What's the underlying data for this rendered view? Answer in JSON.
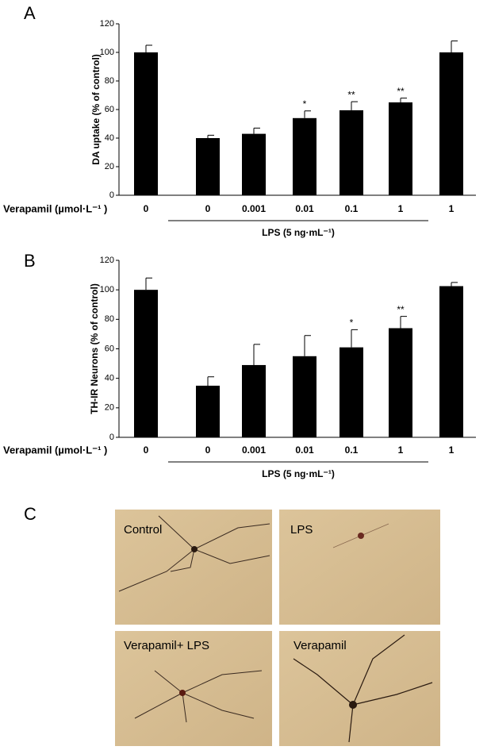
{
  "chart_data": [
    {
      "type": "bar",
      "panel_label": "A",
      "y_label": "DA uptake (% of control)",
      "x_label": "Verapamil (µmol·L⁻¹ )",
      "group_label": "LPS (5 ng·mL⁻¹)",
      "categories": [
        "0",
        "0",
        "0.001",
        "0.01",
        "0.1",
        "1",
        "1"
      ],
      "values": [
        100,
        40,
        43,
        54,
        59.5,
        65,
        100
      ],
      "errors": [
        5,
        2,
        4,
        5,
        6,
        3,
        8
      ],
      "color": "#000000",
      "annotations": [
        {
          "index": 3,
          "text": "*"
        },
        {
          "index": 4,
          "text": "**"
        },
        {
          "index": 5,
          "text": "**"
        }
      ],
      "ylim": [
        0,
        120
      ],
      "yticks": [
        0,
        20,
        40,
        60,
        80,
        100,
        120
      ]
    },
    {
      "type": "bar",
      "panel_label": "B",
      "y_label": "TH-IR Neurons (% of control)",
      "x_label": "Verapamil (µmol·L⁻¹ )",
      "group_label": "LPS (5 ng·mL⁻¹)",
      "categories": [
        "0",
        "0",
        "0.001",
        "0.01",
        "0.1",
        "1",
        "1"
      ],
      "values": [
        100,
        35,
        49,
        55,
        61,
        74,
        102.5
      ],
      "errors": [
        8,
        6,
        14,
        14,
        12,
        8,
        2.5
      ],
      "color": "#000000",
      "annotations": [
        {
          "index": 4,
          "text": "*"
        },
        {
          "index": 5,
          "text": "**"
        }
      ],
      "ylim": [
        0,
        120
      ],
      "yticks": [
        0,
        20,
        40,
        60,
        80,
        100,
        120
      ]
    }
  ],
  "panel_c": {
    "label": "C",
    "images": [
      "Control",
      "LPS",
      "Verapamil+ LPS",
      "Verapamil"
    ]
  }
}
